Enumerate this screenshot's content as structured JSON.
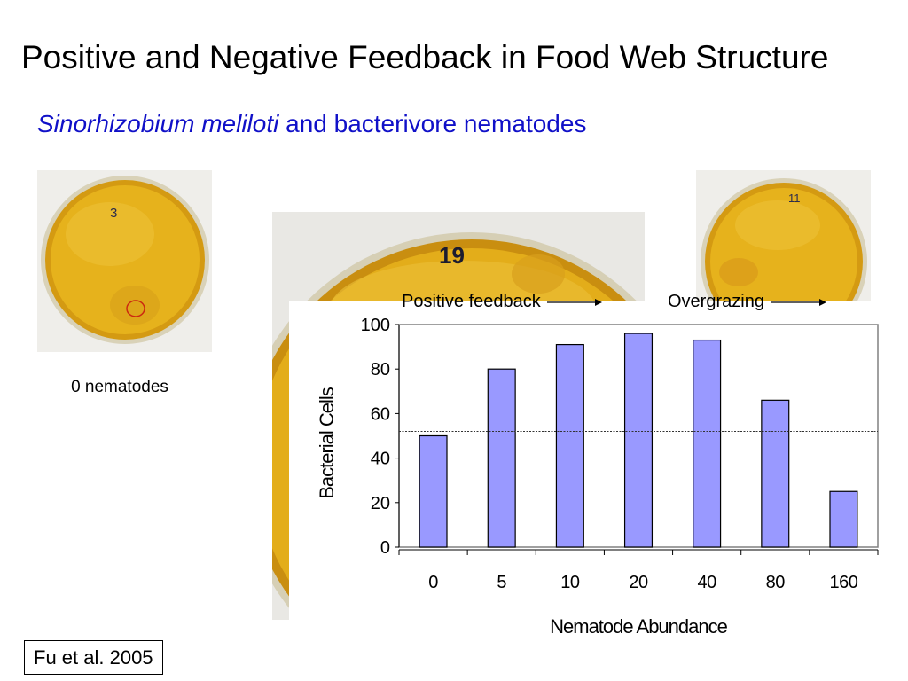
{
  "title": "Positive and Negative Feedback in Food Web Structure",
  "subtitle": {
    "species": "Sinorhizobium meliloti",
    "rest": "and bacterivore nematodes"
  },
  "photos": {
    "plate_left": {
      "marking": "3",
      "label": "0 nematodes"
    },
    "plate_center": {
      "marking": "19"
    },
    "plate_right": {
      "marking": "11"
    }
  },
  "colors": {
    "bar_fill": "#9999ff",
    "plate_agar": "#e6b21c",
    "subtitle": "#1010c8"
  },
  "chart_data": {
    "type": "bar",
    "categories": [
      "0",
      "5",
      "10",
      "20",
      "40",
      "80",
      "160"
    ],
    "values": [
      50,
      80,
      91,
      96,
      93,
      66,
      25
    ],
    "ylim": [
      0,
      100
    ],
    "yticks": [
      "0",
      "20",
      "40",
      "60",
      "80",
      "100"
    ],
    "ylabel": "Bacterial Cells",
    "xlabel": "Nematode Abundance",
    "reference_line": 52,
    "annotations": [
      {
        "text": "Positive feedback",
        "arrow": "right"
      },
      {
        "text": "Overgrazing",
        "arrow": "right"
      }
    ]
  },
  "citation": "Fu et al. 2005"
}
